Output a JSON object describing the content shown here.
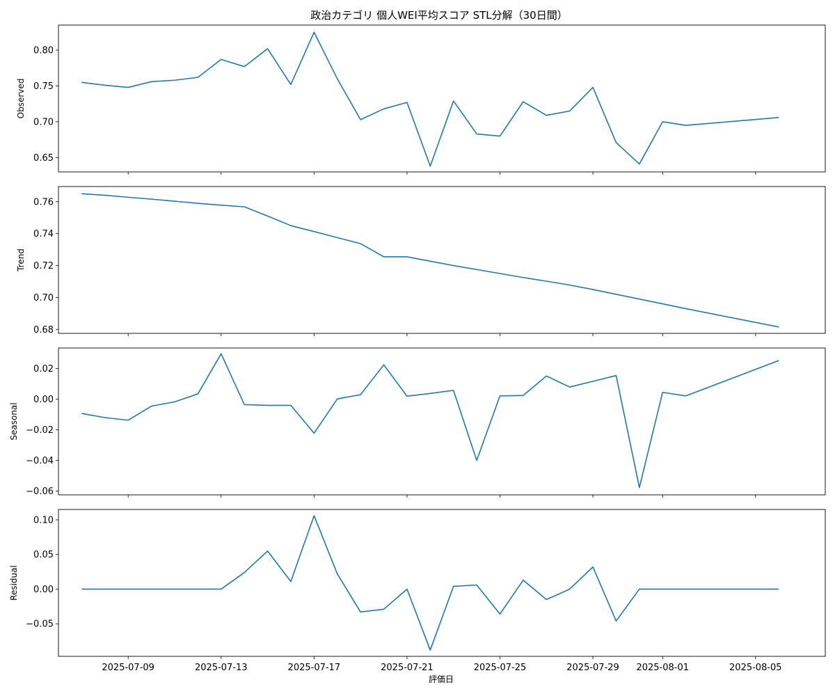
{
  "chart_data": {
    "type": "line",
    "title": "政治カテゴリ 個人WEI平均スコア STL分解（30日間）",
    "xlabel": "評価日",
    "x": [
      "2025-07-07",
      "2025-07-08",
      "2025-07-09",
      "2025-07-10",
      "2025-07-11",
      "2025-07-12",
      "2025-07-13",
      "2025-07-14",
      "2025-07-15",
      "2025-07-16",
      "2025-07-17",
      "2025-07-18",
      "2025-07-19",
      "2025-07-20",
      "2025-07-21",
      "2025-07-22",
      "2025-07-23",
      "2025-07-24",
      "2025-07-25",
      "2025-07-26",
      "2025-07-27",
      "2025-07-28",
      "2025-07-29",
      "2025-07-30",
      "2025-07-31",
      "2025-08-01",
      "2025-08-02",
      "2025-08-06"
    ],
    "x_ticks": [
      "2025-07-09",
      "2025-07-13",
      "2025-07-17",
      "2025-07-21",
      "2025-07-25",
      "2025-07-29",
      "2025-08-01",
      "2025-08-05"
    ],
    "xlim": [
      "2025-07-06",
      "2025-08-08"
    ],
    "color": "#1f77b4",
    "panels": [
      {
        "ylabel": "Observed",
        "ylim": [
          0.63,
          0.835
        ],
        "yticks": [
          0.65,
          0.7,
          0.75,
          0.8
        ],
        "ytick_labels": [
          "0.65",
          "0.70",
          "0.75",
          "0.80"
        ],
        "values": [
          0.755,
          0.751,
          0.748,
          0.756,
          0.758,
          0.762,
          0.787,
          0.777,
          0.802,
          0.752,
          0.825,
          0.76,
          0.703,
          0.718,
          0.727,
          0.638,
          0.729,
          0.683,
          0.68,
          0.728,
          0.709,
          0.715,
          0.748,
          0.671,
          0.641,
          0.7,
          0.695,
          0.706
        ]
      },
      {
        "ylabel": "Trend",
        "ylim": [
          0.6775,
          0.7695
        ],
        "yticks": [
          0.68,
          0.7,
          0.72,
          0.74,
          0.76
        ],
        "ytick_labels": [
          "0.68",
          "0.70",
          "0.72",
          "0.74",
          "0.76"
        ],
        "values": [
          0.765,
          0.764,
          0.7628,
          0.7616,
          0.7603,
          0.759,
          0.7578,
          0.7568,
          0.751,
          0.745,
          0.7413,
          0.7375,
          0.7337,
          0.7255,
          0.7255,
          0.7227,
          0.72,
          0.7175,
          0.715,
          0.7125,
          0.7102,
          0.7078,
          0.705,
          0.702,
          0.699,
          0.696,
          0.693,
          0.6815
        ]
      },
      {
        "ylabel": "Seasonal",
        "ylim": [
          -0.0625,
          0.0335
        ],
        "yticks": [
          -0.06,
          -0.04,
          -0.02,
          0.0,
          0.02
        ],
        "ytick_labels": [
          "−0.06",
          "−0.04",
          "−0.02",
          "0.00",
          "0.02"
        ],
        "values": [
          -0.0093,
          -0.012,
          -0.0137,
          -0.0045,
          -0.0017,
          0.0035,
          0.0297,
          -0.0035,
          -0.004,
          -0.004,
          -0.0222,
          0.0002,
          0.003,
          0.0225,
          0.002,
          0.0038,
          0.0058,
          -0.04,
          0.0022,
          0.0025,
          0.0152,
          0.008,
          0.0117,
          0.0155,
          -0.0577,
          0.0045,
          0.0022,
          0.0253
        ]
      },
      {
        "ylabel": "Residual",
        "ylim": [
          -0.097,
          0.115
        ],
        "yticks": [
          -0.05,
          0.0,
          0.05,
          0.1
        ],
        "ytick_labels": [
          "−0.05",
          "0.00",
          "0.05",
          "0.10"
        ],
        "values": [
          0,
          0,
          0,
          0,
          0,
          0,
          0,
          0.024,
          0.055,
          0.011,
          0.106,
          0.022,
          -0.033,
          -0.029,
          0,
          -0.088,
          0.004,
          0.006,
          -0.036,
          0.013,
          -0.015,
          0,
          0.032,
          -0.046,
          0,
          0,
          0,
          0
        ]
      }
    ]
  }
}
